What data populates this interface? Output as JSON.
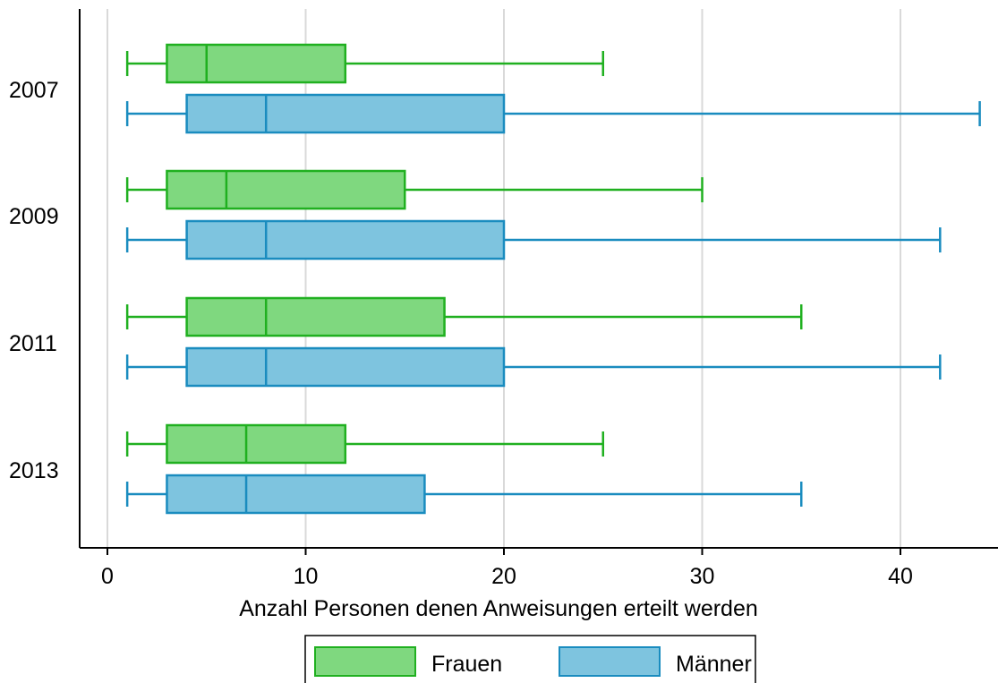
{
  "chart_data": {
    "type": "boxplot",
    "orientation": "horizontal",
    "categories": [
      "2007",
      "2009",
      "2011",
      "2013"
    ],
    "xlabel": "Anzahl Personen denen Anweisungen erteilt werden",
    "xlim": [
      -1,
      45
    ],
    "xticks": [
      0,
      10,
      20,
      30,
      40
    ],
    "grid": "vertical",
    "legend_position": "bottom",
    "series": [
      {
        "name": "Frauen",
        "fill": "#7fd87f",
        "stroke": "#20b020",
        "boxes": [
          {
            "category": "2007",
            "min": 1,
            "q1": 3,
            "median": 5,
            "q3": 12,
            "max": 25
          },
          {
            "category": "2009",
            "min": 1,
            "q1": 3,
            "median": 6,
            "q3": 15,
            "max": 30
          },
          {
            "category": "2011",
            "min": 1,
            "q1": 4,
            "median": 8,
            "q3": 17,
            "max": 35
          },
          {
            "category": "2013",
            "min": 1,
            "q1": 3,
            "median": 7,
            "q3": 12,
            "max": 25
          }
        ]
      },
      {
        "name": "Männer",
        "fill": "#7ec4df",
        "stroke": "#1a8cbf",
        "boxes": [
          {
            "category": "2007",
            "min": 1,
            "q1": 4,
            "median": 8,
            "q3": 20,
            "max": 44
          },
          {
            "category": "2009",
            "min": 1,
            "q1": 4,
            "median": 8,
            "q3": 20,
            "max": 42
          },
          {
            "category": "2011",
            "min": 1,
            "q1": 4,
            "median": 8,
            "q3": 20,
            "max": 42
          },
          {
            "category": "2013",
            "min": 1,
            "q1": 3,
            "median": 7,
            "q3": 16,
            "max": 35
          }
        ]
      }
    ]
  },
  "colors": {
    "frauen_fill": "#7fd87f",
    "frauen_stroke": "#20b020",
    "maenner_fill": "#7ec4df",
    "maenner_stroke": "#1a8cbf",
    "grid": "#d9d9d9",
    "axis": "#000000"
  }
}
